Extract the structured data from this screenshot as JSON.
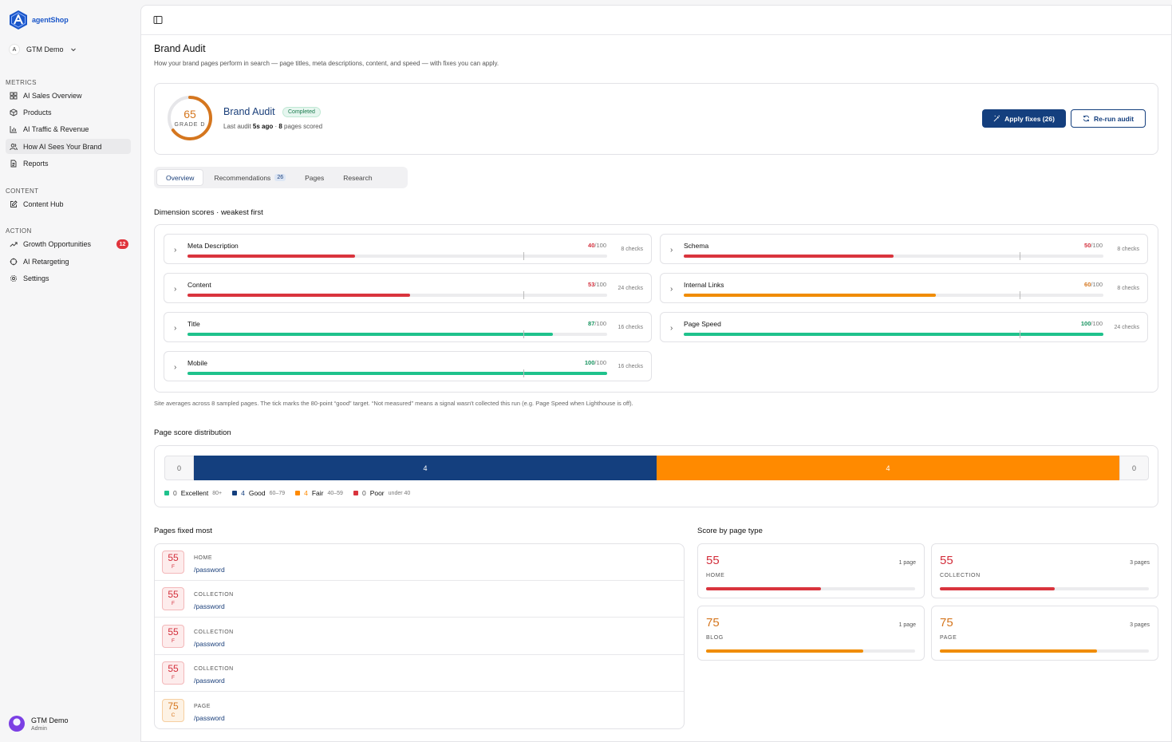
{
  "brand": {
    "name": "agentShop",
    "color": "#1b57c9"
  },
  "workspace": {
    "initial": "A",
    "name": "GTM Demo"
  },
  "sidebar": {
    "sections": {
      "metrics": "METRICS",
      "content": "CONTENT",
      "action": "ACTION"
    },
    "items": [
      {
        "label": "AI Sales Overview",
        "icon": "grid-icon"
      },
      {
        "label": "Products",
        "icon": "box-icon"
      },
      {
        "label": "AI Traffic & Revenue",
        "icon": "bar-chart-icon"
      },
      {
        "label": "How AI Sees Your Brand",
        "icon": "users-icon",
        "active": true
      },
      {
        "label": "Reports",
        "icon": "file-icon"
      },
      {
        "label": "Content Hub",
        "icon": "edit-icon"
      },
      {
        "label": "Growth Opportunities",
        "icon": "trend-icon",
        "badge": "12"
      },
      {
        "label": "AI Retargeting",
        "icon": "crosshair-icon"
      },
      {
        "label": "Settings",
        "icon": "gear-icon"
      }
    ]
  },
  "user": {
    "name": "GTM Demo",
    "role": "Admin"
  },
  "page": {
    "title": "Brand Audit",
    "subtitle": "How your brand pages perform in search — page titles, meta descriptions, content, and speed — with fixes you can apply."
  },
  "audit": {
    "score": "65",
    "grade": "GRADE D",
    "score_fraction": 0.65,
    "name": "Brand Audit",
    "status": "Completed",
    "meta_prefix": "Last audit ",
    "meta_time": "5s ago",
    "meta_sep": " · ",
    "meta_pages": "8",
    "meta_suffix": " pages scored",
    "apply_label": "Apply fixes (26)",
    "rerun_label": "Re-run audit"
  },
  "tabs": [
    {
      "label": "Overview",
      "active": true
    },
    {
      "label": "Recommendations",
      "count": "26"
    },
    {
      "label": "Pages"
    },
    {
      "label": "Research"
    }
  ],
  "dimensions": {
    "title": "Dimension scores · weakest first",
    "target": 80,
    "items": [
      {
        "name": "Meta Description",
        "value": 40,
        "score": "40",
        "max": "/100",
        "checks": "8 checks",
        "color": "#d9343d"
      },
      {
        "name": "Schema",
        "value": 50,
        "score": "50",
        "max": "/100",
        "checks": "8 checks",
        "color": "#d9343d"
      },
      {
        "name": "Content",
        "value": 53,
        "score": "53",
        "max": "/100",
        "checks": "24 checks",
        "color": "#d9343d"
      },
      {
        "name": "Internal Links",
        "value": 60,
        "score": "60",
        "max": "/100",
        "checks": "8 checks",
        "color": "#f08c00"
      },
      {
        "name": "Title",
        "value": 87,
        "score": "87",
        "max": "/100",
        "checks": "16 checks",
        "color": "#1fc28c"
      },
      {
        "name": "Page Speed",
        "value": 100,
        "score": "100",
        "max": "/100",
        "checks": "24 checks",
        "color": "#1fc28c"
      },
      {
        "name": "Mobile",
        "value": 100,
        "score": "100",
        "max": "/100",
        "checks": "16 checks",
        "color": "#1fc28c"
      }
    ],
    "note": "Site averages across 8 sampled pages. The tick marks the 80-point “good” target. “Not measured” means a signal wasn't collected this run (e.g. Page Speed when Lighthouse is off)."
  },
  "distribution": {
    "title": "Page score distribution",
    "segments": [
      {
        "label": "0",
        "count": 0
      },
      {
        "label": "4",
        "count": 4,
        "color": "#143f7e"
      },
      {
        "label": "4",
        "count": 4,
        "color": "#ff8a00"
      },
      {
        "label": "0",
        "count": 0
      }
    ],
    "legend": [
      {
        "count": "0",
        "name": "Excellent",
        "range": "80+",
        "color": "#1fc28c"
      },
      {
        "count": "4",
        "name": "Good",
        "range": "60–79",
        "color": "#143f7e"
      },
      {
        "count": "4",
        "name": "Fair",
        "range": "40–59",
        "color": "#ff8a00"
      },
      {
        "count": "0",
        "name": "Poor",
        "range": "under 40",
        "color": "#d9343d"
      }
    ]
  },
  "pages_fixed": {
    "title": "Pages fixed most",
    "rows": [
      {
        "score": "55",
        "grade": "F",
        "type": "HOME",
        "path": "/password",
        "tone": "red"
      },
      {
        "score": "55",
        "grade": "F",
        "type": "COLLECTION",
        "path": "/password",
        "tone": "red"
      },
      {
        "score": "55",
        "grade": "F",
        "type": "COLLECTION",
        "path": "/password",
        "tone": "red"
      },
      {
        "score": "55",
        "grade": "F",
        "type": "COLLECTION",
        "path": "/password",
        "tone": "red"
      },
      {
        "score": "75",
        "grade": "C",
        "type": "PAGE",
        "path": "/password",
        "tone": "orange"
      }
    ]
  },
  "page_types": {
    "title": "Score by page type",
    "cards": [
      {
        "score": "55",
        "value": 55,
        "label": "HOME",
        "count": "1 page",
        "color": "#d9343d"
      },
      {
        "score": "55",
        "value": 55,
        "label": "COLLECTION",
        "count": "3 pages",
        "color": "#d9343d"
      },
      {
        "score": "75",
        "value": 75,
        "label": "BLOG",
        "count": "1 page",
        "color": "#f08c00"
      },
      {
        "score": "75",
        "value": 75,
        "label": "PAGE",
        "count": "3 pages",
        "color": "#f08c00"
      }
    ]
  }
}
